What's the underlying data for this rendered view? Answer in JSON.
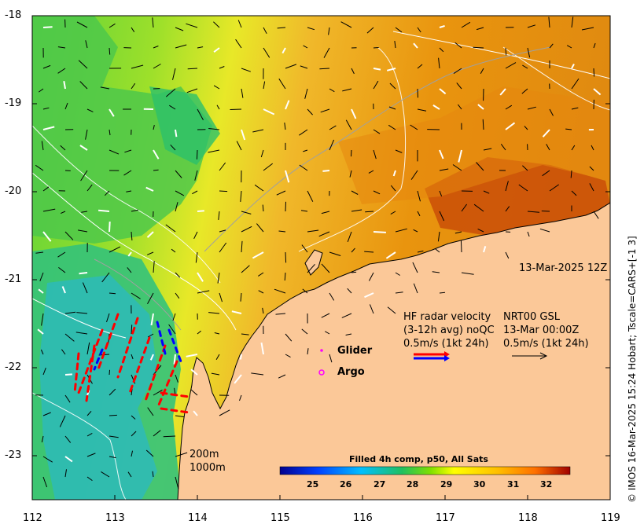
{
  "map": {
    "timestamp": "13-Mar-2025 12Z",
    "credit": "© IMOS 16-Mar-2025 15:24 Hobart; Tscale=CARS+[-1 3]",
    "x_ticks": [
      "112",
      "113",
      "114",
      "115",
      "116",
      "117",
      "118",
      "119"
    ],
    "y_ticks": [
      "-18",
      "-19",
      "-20",
      "-21",
      "-22",
      "-23"
    ],
    "lon_range": [
      112,
      119
    ],
    "lat_range": [
      -23.5,
      -18
    ],
    "colors": {
      "land": "#fbc898",
      "warm": "#e98b12",
      "hot": "#c84a08",
      "cool": "#3cc83c",
      "cold": "#1ab5d6"
    }
  },
  "legend": {
    "hf_title": "HF radar velocity",
    "hf_qc": "(3-12h avg) noQC",
    "hf_scale": "0.5m/s (1kt 24h)",
    "nrt_title": "NRT00 GSL",
    "nrt_time": "13-Mar 00:00Z",
    "nrt_scale": "0.5m/s (1kt 24h)",
    "glider": "Glider",
    "argo": "Argo",
    "depth1": "200m",
    "depth2": "1000m"
  },
  "colorbar": {
    "title": "Filled 4h comp, p50, All Sats",
    "ticks": [
      "25",
      "26",
      "27",
      "28",
      "29",
      "30",
      "31",
      "32"
    ],
    "range": [
      24.25,
      32.75
    ]
  }
}
